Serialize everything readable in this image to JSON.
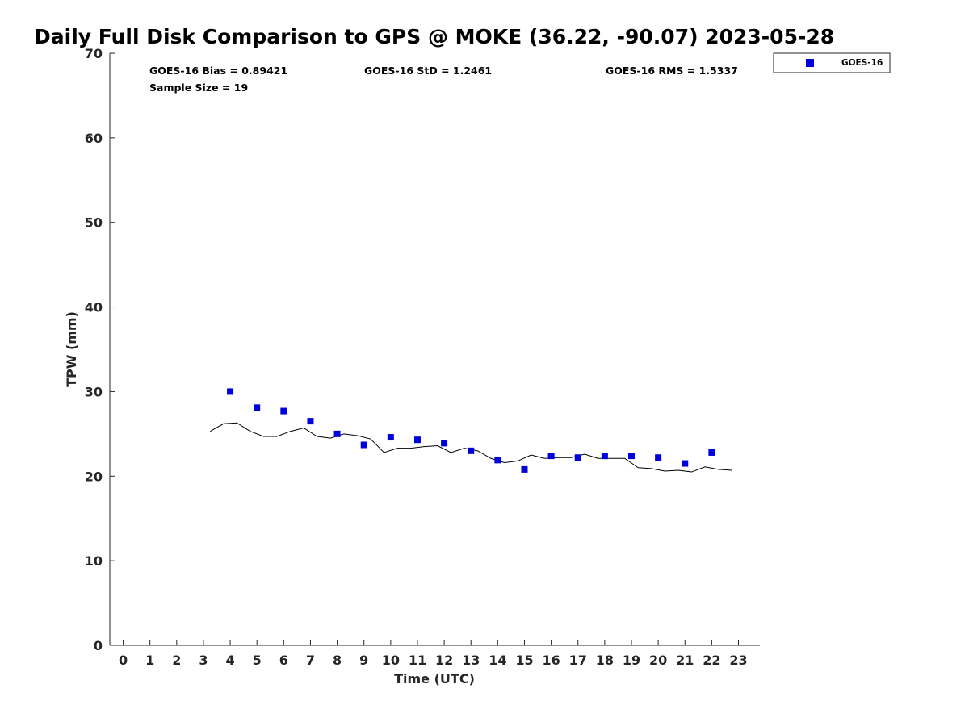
{
  "title": "Daily Full Disk Comparison to GPS @ MOKE (36.22, -90.07) 2023-05-28",
  "stats": {
    "bias": "GOES-16 Bias = 0.89421",
    "std": "GOES-16 StD = 1.2461",
    "rms": "GOES-16 RMS = 1.5337",
    "sample_size": "Sample Size = 19"
  },
  "colors": {
    "goes_marker": "#0000DD",
    "gps_line": "#000000",
    "axis": "#262626"
  },
  "chart_data": {
    "type": "scatter",
    "title": "Daily Full Disk Comparison to GPS @ MOKE (36.22, -90.07) 2023-05-28",
    "xlabel": "Time (UTC)",
    "ylabel": "TPW (mm)",
    "xlim": [
      -0.5,
      23.8
    ],
    "ylim": [
      0,
      70
    ],
    "xticks": [
      0,
      1,
      2,
      3,
      4,
      5,
      6,
      7,
      8,
      9,
      10,
      11,
      12,
      13,
      14,
      15,
      16,
      17,
      18,
      19,
      20,
      21,
      22,
      23
    ],
    "yticks": [
      0,
      10,
      20,
      30,
      40,
      50,
      60,
      70
    ],
    "grid": false,
    "legend": {
      "position": "top-right",
      "entries": [
        "GOES-16"
      ]
    },
    "series": [
      {
        "name": "GOES-16",
        "style": "markers",
        "marker": "square",
        "x": [
          4,
          5,
          6,
          7,
          8,
          9,
          10,
          11,
          12,
          13,
          14,
          15,
          16,
          17,
          18,
          19,
          20,
          21,
          22
        ],
        "y": [
          30.0,
          28.1,
          27.7,
          26.5,
          25.0,
          23.7,
          24.6,
          24.3,
          23.9,
          23.0,
          21.9,
          20.8,
          22.4,
          22.2,
          22.4,
          22.4,
          22.2,
          21.5,
          22.8
        ]
      },
      {
        "style": "line",
        "x": [
          3.25,
          3.75,
          4.25,
          4.75,
          5.25,
          5.75,
          6.25,
          6.75,
          7.25,
          7.75,
          8.25,
          8.75,
          9.25,
          9.75,
          10.25,
          10.75,
          11.25,
          11.75,
          12.25,
          12.75,
          13.25,
          13.75,
          14.25,
          14.75,
          15.25,
          15.75,
          16.25,
          16.75,
          17.25,
          17.75,
          18.25,
          18.75,
          19.25,
          19.75,
          20.25,
          20.75,
          21.25,
          21.75,
          22.25,
          22.75
        ],
        "y": [
          25.3,
          26.2,
          26.3,
          25.3,
          24.7,
          24.7,
          25.3,
          25.7,
          24.7,
          24.5,
          25.0,
          24.8,
          24.4,
          22.8,
          23.3,
          23.3,
          23.5,
          23.6,
          22.8,
          23.3,
          23.0,
          22.1,
          21.6,
          21.8,
          22.5,
          22.1,
          22.2,
          22.2,
          22.6,
          22.1,
          22.1,
          22.1,
          21.0,
          20.9,
          20.6,
          20.7,
          20.5,
          21.1,
          20.8,
          20.7
        ]
      }
    ]
  }
}
